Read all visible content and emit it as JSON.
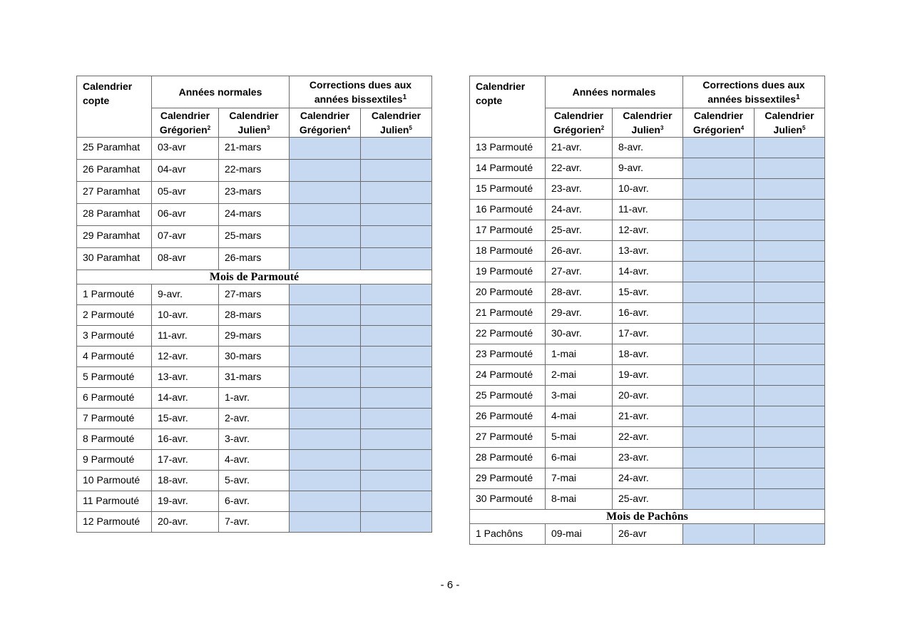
{
  "header": {
    "coptic": "Calendrier copte",
    "normal": "Années normales",
    "corrections": "Corrections dues aux années bissextiles",
    "corrections_note": "1",
    "greg_label": "Calendrier",
    "greg_label2": "Grégorien",
    "jul_label": "Calendrier",
    "jul_label2": "Julien",
    "notes": [
      "2",
      "3",
      "4",
      "5"
    ]
  },
  "colors": {
    "correction_fill": "#c6d9f1"
  },
  "left_table": {
    "rows_a": [
      [
        "25 Paramhat",
        "03-avr",
        "21-mars"
      ],
      [
        "26 Paramhat",
        "04-avr",
        "22-mars"
      ],
      [
        "27 Paramhat",
        "05-avr",
        "23-mars"
      ],
      [
        "28 Paramhat",
        "06-avr",
        "24-mars"
      ],
      [
        "29 Paramhat",
        "07-avr",
        "25-mars"
      ],
      [
        "30 Paramhat",
        "08-avr",
        "26-mars"
      ]
    ],
    "section": "Mois de Parmouté",
    "rows_b": [
      [
        "1 Parmouté",
        "9-avr.",
        "27-mars"
      ],
      [
        "2 Parmouté",
        "10-avr.",
        "28-mars"
      ],
      [
        "3 Parmouté",
        "11-avr.",
        "29-mars"
      ],
      [
        "4 Parmouté",
        "12-avr.",
        "30-mars"
      ],
      [
        "5 Parmouté",
        "13-avr.",
        "31-mars"
      ],
      [
        "6 Parmouté",
        "14-avr.",
        "1-avr."
      ],
      [
        "7 Parmouté",
        "15-avr.",
        "2-avr."
      ],
      [
        "8 Parmouté",
        "16-avr.",
        "3-avr."
      ],
      [
        "9 Parmouté",
        "17-avr.",
        "4-avr."
      ],
      [
        "10 Parmouté",
        "18-avr.",
        "5-avr."
      ],
      [
        "11 Parmouté",
        "19-avr.",
        "6-avr."
      ],
      [
        "12 Parmouté",
        "20-avr.",
        "7-avr."
      ]
    ]
  },
  "right_table": {
    "rows_a": [
      [
        "13 Parmouté",
        "21-avr.",
        "8-avr."
      ],
      [
        "14 Parmouté",
        "22-avr.",
        "9-avr."
      ],
      [
        "15 Parmouté",
        "23-avr.",
        "10-avr."
      ],
      [
        "16 Parmouté",
        "24-avr.",
        "11-avr."
      ],
      [
        "17 Parmouté",
        "25-avr.",
        "12-avr."
      ],
      [
        "18 Parmouté",
        "26-avr.",
        "13-avr."
      ],
      [
        "19 Parmouté",
        "27-avr.",
        "14-avr."
      ],
      [
        "20 Parmouté",
        "28-avr.",
        "15-avr."
      ],
      [
        "21 Parmouté",
        "29-avr.",
        "16-avr."
      ],
      [
        "22 Parmouté",
        "30-avr.",
        "17-avr."
      ],
      [
        "23 Parmouté",
        "1-mai",
        "18-avr."
      ],
      [
        "24 Parmouté",
        "2-mai",
        "19-avr."
      ],
      [
        "25 Parmouté",
        "3-mai",
        "20-avr."
      ],
      [
        "26 Parmouté",
        "4-mai",
        "21-avr."
      ],
      [
        "27 Parmouté",
        "5-mai",
        "22-avr."
      ],
      [
        "28 Parmouté",
        "6-mai",
        "23-avr."
      ],
      [
        "29 Parmouté",
        "7-mai",
        "24-avr."
      ],
      [
        "30 Parmouté",
        "8-mai",
        "25-avr."
      ]
    ],
    "section": "Mois de Pachôns",
    "rows_b": [
      [
        "1 Pachôns",
        "09-mai",
        "26-avr"
      ]
    ]
  },
  "footer": {
    "page_number": "- 6 -"
  }
}
